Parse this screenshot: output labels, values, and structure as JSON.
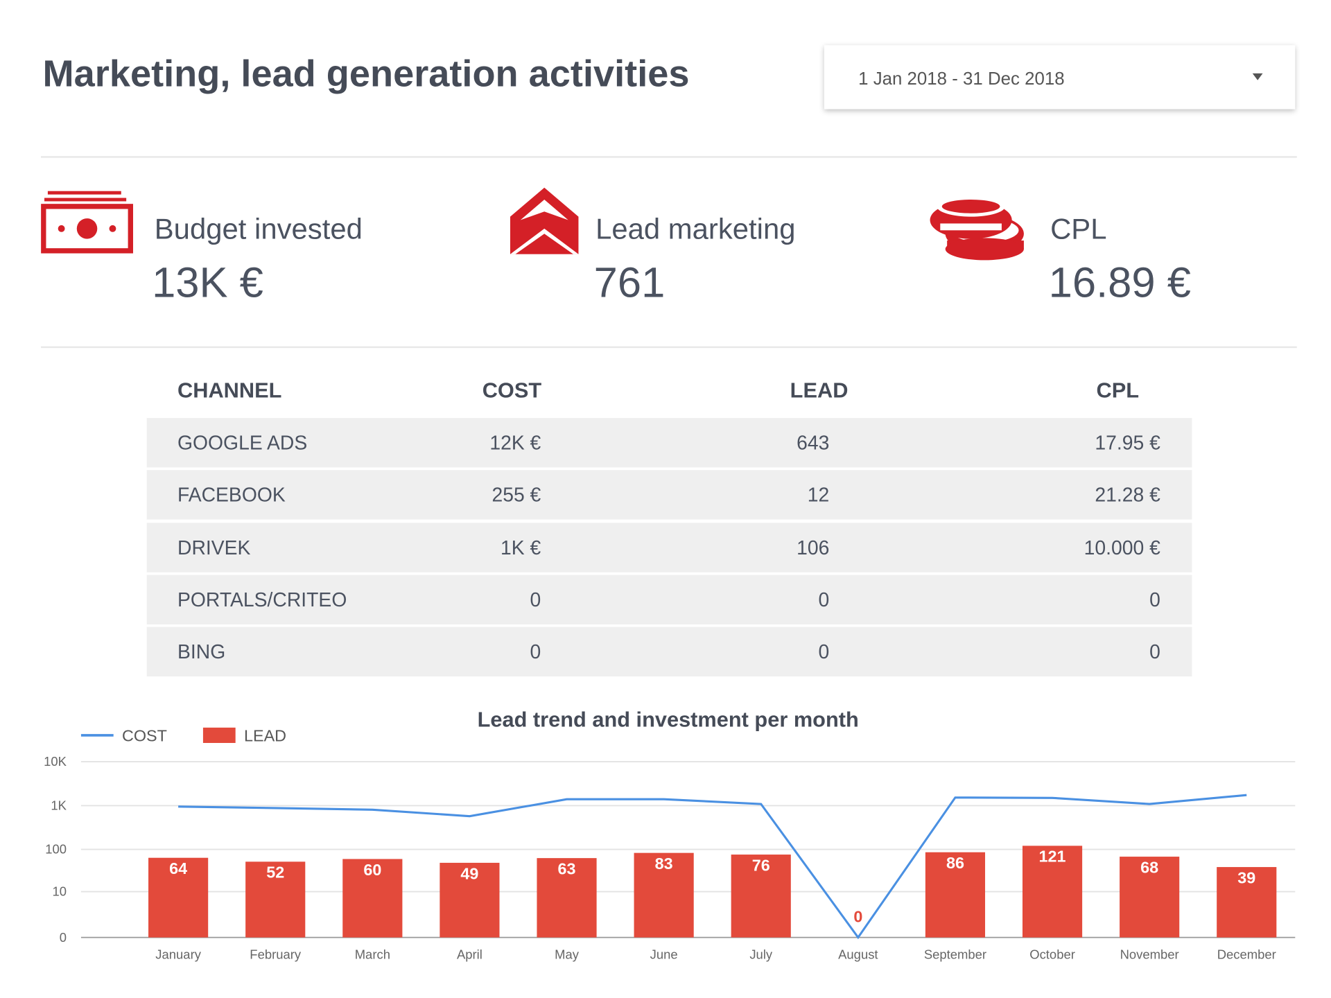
{
  "header": {
    "title": "Marketing, lead generation activities",
    "date_range": "1 Jan 2018 - 31 Dec 2018"
  },
  "kpis": [
    {
      "label": "Budget invested",
      "value": "13K €"
    },
    {
      "label": "Lead marketing",
      "value": "761"
    },
    {
      "label": "CPL",
      "value": "16.89 €"
    }
  ],
  "table": {
    "headers": [
      "CHANNEL",
      "COST",
      "LEAD",
      "CPL"
    ],
    "rows": [
      [
        "GOOGLE ADS",
        "12K €",
        "643",
        "17.95 €"
      ],
      [
        "FACEBOOK",
        "255 €",
        "12",
        "21.28 €"
      ],
      [
        "DRIVEK",
        "1K €",
        "106",
        "10.000 €"
      ],
      [
        "PORTALS/CRITEO",
        "0",
        "0",
        "0"
      ],
      [
        "BING",
        "0",
        "0",
        "0"
      ]
    ]
  },
  "chart_data": {
    "type": "combo",
    "title": "Lead trend and investment per month",
    "categories": [
      "January",
      "February",
      "March",
      "April",
      "May",
      "June",
      "July",
      "August",
      "September",
      "October",
      "November",
      "December"
    ],
    "series": [
      {
        "name": "COST",
        "type": "line",
        "color": "#4a90e2",
        "values": [
          950,
          880,
          807,
          575,
          1400,
          1400,
          1090,
          0,
          1530,
          1500,
          1090,
          1740
        ]
      },
      {
        "name": "LEAD",
        "type": "bar",
        "color": "#e34a3b",
        "values": [
          64,
          52,
          60,
          49,
          63,
          83,
          76,
          0,
          86,
          121,
          68,
          39
        ]
      }
    ],
    "ylim": [
      0,
      10000
    ],
    "yticks": [
      0,
      10,
      100,
      {
        "value": 1000,
        "label": "1K"
      },
      {
        "value": 10000,
        "label": "10K"
      }
    ],
    "log_scale": true,
    "grid": true,
    "legend": "top-left"
  }
}
